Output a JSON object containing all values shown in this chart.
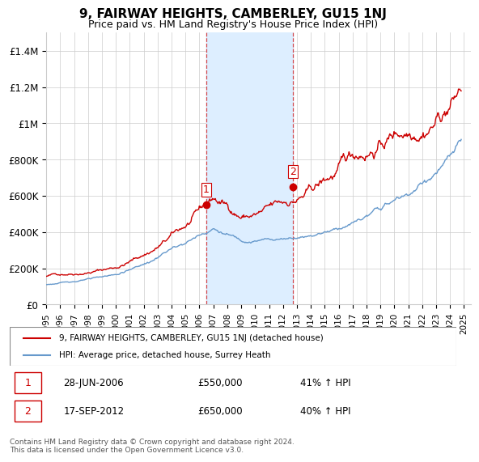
{
  "title": "9, FAIRWAY HEIGHTS, CAMBERLEY, GU15 1NJ",
  "subtitle": "Price paid vs. HM Land Registry's House Price Index (HPI)",
  "ylabel_ticks": [
    "£0",
    "£200K",
    "£400K",
    "£600K",
    "£800K",
    "£1M",
    "£1.2M",
    "£1.4M"
  ],
  "ytick_values": [
    0,
    200000,
    400000,
    600000,
    800000,
    1000000,
    1200000,
    1400000
  ],
  "ylim": [
    0,
    1500000
  ],
  "xlim_start": 1995.0,
  "xlim_end": 2025.5,
  "sale1_x": 2006.49,
  "sale1_y": 550000,
  "sale1_label": "1",
  "sale2_x": 2012.71,
  "sale2_y": 650000,
  "sale2_label": "2",
  "shaded_region_x1": 2006.49,
  "shaded_region_x2": 2012.71,
  "dashed_line1_x": 2006.49,
  "dashed_line2_x": 2012.71,
  "line_color_red": "#cc0000",
  "line_color_blue": "#6699cc",
  "shaded_color": "#ddeeff",
  "legend_red_label": "9, FAIRWAY HEIGHTS, CAMBERLEY, GU15 1NJ (detached house)",
  "legend_blue_label": "HPI: Average price, detached house, Surrey Heath",
  "table_row1": [
    "1",
    "28-JUN-2006",
    "£550,000",
    "41% ↑ HPI"
  ],
  "table_row2": [
    "2",
    "17-SEP-2012",
    "£650,000",
    "40% ↑ HPI"
  ],
  "footer": "Contains HM Land Registry data © Crown copyright and database right 2024.\nThis data is licensed under the Open Government Licence v3.0.",
  "background_color": "#ffffff",
  "grid_color": "#cccccc"
}
